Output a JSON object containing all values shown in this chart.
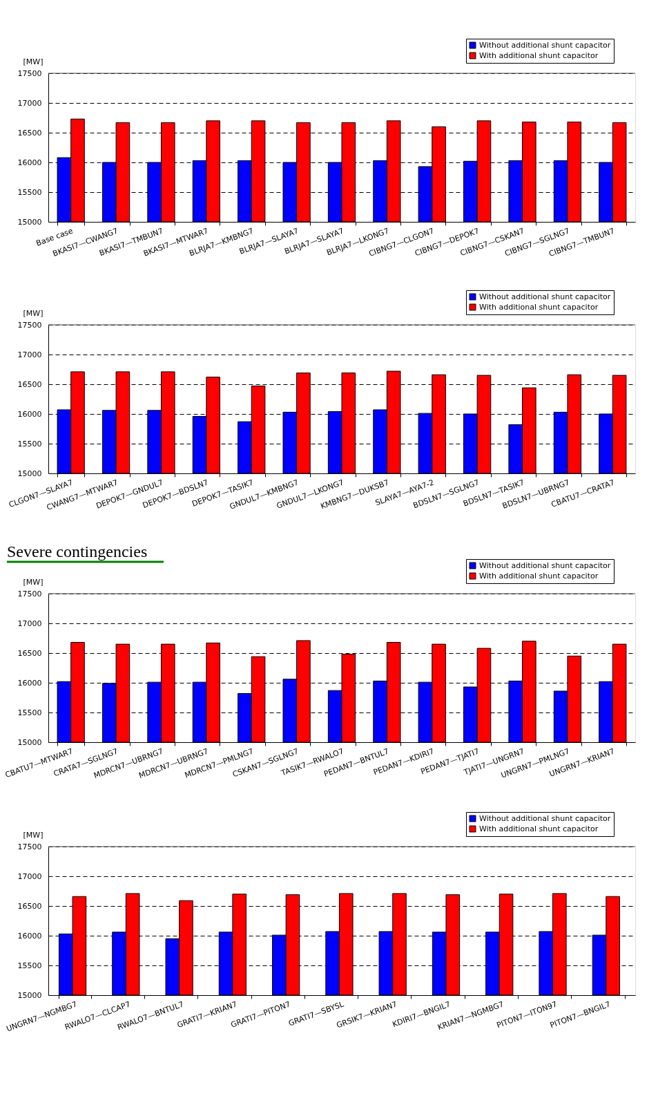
{
  "chart_data": [
    {
      "type": "bar",
      "ylabel": "[MW]",
      "categories": [
        "Base case",
        "BKASI7—CWANG7",
        "BKASI7—TMBUN7",
        "BKASI7—MTWAR7",
        "BLRJA7—KMBNG7",
        "BLRJA7—SLAYA7",
        "BLRJA7—SLAYA7",
        "BLRJA7—LKONG7",
        "CIBNG7—CLGON7",
        "CIBNG7—DEPOK7",
        "CIBNG7—CSKAN7",
        "CIBNG7—SGLNG7",
        "CIBNG7—TMBUN7"
      ],
      "series": [
        {
          "name": "Without additional shunt capacitor",
          "color": "#0000ff",
          "values": [
            16080,
            16000,
            16000,
            16030,
            16030,
            16000,
            16000,
            16030,
            15930,
            16020,
            16030,
            16030,
            16000
          ]
        },
        {
          "name": "With additional shunt capacitor",
          "color": "#ff0000",
          "values": [
            16730,
            16670,
            16670,
            16700,
            16700,
            16670,
            16670,
            16700,
            16600,
            16700,
            16680,
            16680,
            16670
          ]
        }
      ],
      "ylim": [
        15000,
        17500
      ],
      "yticks": [
        15000,
        15500,
        16000,
        16500,
        17000,
        17500
      ],
      "grid": "y",
      "legend": "top right"
    },
    {
      "type": "bar",
      "ylabel": "[MW]",
      "categories": [
        "CLGON7—SLAYA7",
        "CWANG7—MTWAR7",
        "DEPOK7—GNDUL7",
        "DEPOK7—BDSLN7",
        "DEPOK7—TASIK7",
        "GNDUL7—KMBNG7",
        "GNDUL7—LKONG7",
        "KMBNG7—DUKSB7",
        "SLAYA7—AYA7-2",
        "BDSLN7—SGLNG7",
        "BDSLN7—TASIK7",
        "BDSLN7—UBRNG7",
        "CBATU7—CRATA7"
      ],
      "series": [
        {
          "name": "Without additional shunt capacitor",
          "color": "#0000ff",
          "values": [
            16070,
            16060,
            16060,
            15960,
            15870,
            16030,
            16040,
            16070,
            16010,
            16000,
            15820,
            16030,
            16000
          ]
        },
        {
          "name": "With additional shunt capacitor",
          "color": "#ff0000",
          "values": [
            16710,
            16710,
            16710,
            16620,
            16470,
            16690,
            16690,
            16720,
            16660,
            16650,
            16440,
            16660,
            16650
          ]
        }
      ],
      "ylim": [
        15000,
        17500
      ],
      "yticks": [
        15000,
        15500,
        16000,
        16500,
        17000,
        17500
      ],
      "grid": "y",
      "legend": "top right"
    },
    {
      "type": "bar",
      "ylabel": "[MW]",
      "annotations": [
        "Severe contingencies"
      ],
      "categories": [
        "CBATU7—MTWAR7",
        "CRATA7—SGLNG7",
        "MDRCN7—UBRNG7",
        "MDRCN7—UBRNG7",
        "MDRCN7—PMLNG7",
        "CSKAN7—SGLNG7",
        "TASIK7—RWALO7",
        "PEDAN7—BNTUL7",
        "PEDAN7—KDIRI7",
        "PEDAN7—TJATI7",
        "TJATI7—UNGRN7",
        "UNGRN7—PMLNG7",
        "UNGRN7—KRIAN7"
      ],
      "series": [
        {
          "name": "Without additional shunt capacitor",
          "color": "#0000ff",
          "values": [
            16020,
            15990,
            16010,
            16010,
            15820,
            16060,
            15870,
            16030,
            16010,
            15930,
            16030,
            15860,
            16020
          ]
        },
        {
          "name": "With additional shunt capacitor",
          "color": "#ff0000",
          "values": [
            16680,
            16650,
            16650,
            16670,
            16440,
            16710,
            16480,
            16680,
            16650,
            16580,
            16700,
            16450,
            16650
          ]
        }
      ],
      "ylim": [
        15000,
        17500
      ],
      "yticks": [
        15000,
        15500,
        16000,
        16500,
        17000,
        17500
      ],
      "grid": "y",
      "legend": "top right"
    },
    {
      "type": "bar",
      "ylabel": "[MW]",
      "categories": [
        "UNGRN7—NGMBG7",
        "RWALO7—CLCAP7",
        "RWALO7—BNTUL7",
        "GRATI7—KRIAN7",
        "GRATI7—PITON7",
        "GRATI7—SBYSL",
        "GRSIK7—KRIAN7",
        "KDIRI7—BNGIL7",
        "KRIAN7—NGMBG7",
        "PITON7—ITON97",
        "PITON7—BNGIL7"
      ],
      "series": [
        {
          "name": "Without additional shunt capacitor",
          "color": "#0000ff",
          "values": [
            16030,
            16060,
            15950,
            16060,
            16010,
            16070,
            16070,
            16060,
            16060,
            16070,
            16010
          ]
        },
        {
          "name": "With additional shunt capacitor",
          "color": "#ff0000",
          "values": [
            16660,
            16710,
            16590,
            16700,
            16690,
            16710,
            16710,
            16690,
            16700,
            16710,
            16660
          ]
        }
      ],
      "ylim": [
        15000,
        17500
      ],
      "yticks": [
        15000,
        15500,
        16000,
        16500,
        17000,
        17500
      ],
      "grid": "y",
      "legend": "top right"
    }
  ]
}
